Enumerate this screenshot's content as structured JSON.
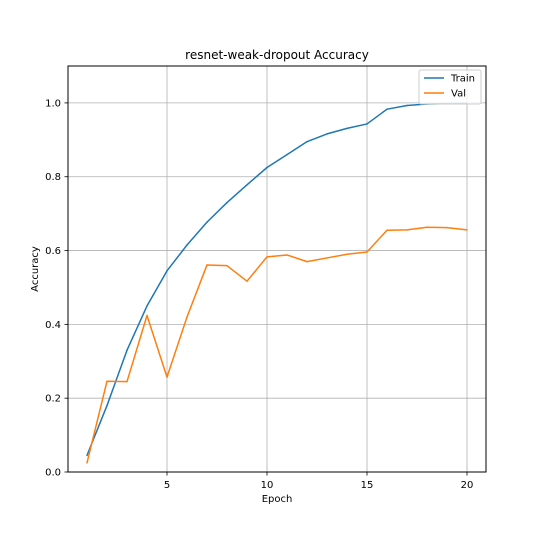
{
  "chart_data": {
    "type": "line",
    "title": "resnet-weak-dropout Accuracy",
    "xlabel": "Epoch",
    "ylabel": "Accuracy",
    "xlim": [
      0.05,
      20.95
    ],
    "ylim": [
      0.0,
      1.1
    ],
    "xticks": [
      5,
      10,
      15,
      20
    ],
    "xtick_labels": [
      "5",
      "10",
      "15",
      "20"
    ],
    "yticks": [
      0.0,
      0.2,
      0.4,
      0.6,
      0.8,
      1.0
    ],
    "ytick_labels": [
      "0.0",
      "0.2",
      "0.4",
      "0.6",
      "0.8",
      "1.0"
    ],
    "grid": true,
    "legend_position": "top-right",
    "x": [
      1,
      2,
      3,
      4,
      5,
      6,
      7,
      8,
      9,
      10,
      11,
      12,
      13,
      14,
      15,
      16,
      17,
      18,
      19,
      20
    ],
    "series": [
      {
        "name": "Train",
        "color": "#1f77b4",
        "values": [
          0.045,
          0.18,
          0.33,
          0.45,
          0.545,
          0.615,
          0.677,
          0.73,
          0.778,
          0.825,
          0.86,
          0.895,
          0.916,
          0.931,
          0.943,
          0.983,
          0.993,
          0.997,
          0.998,
          0.999
        ]
      },
      {
        "name": "Val",
        "color": "#ff7f0e",
        "values": [
          0.025,
          0.246,
          0.245,
          0.424,
          0.257,
          0.42,
          0.561,
          0.559,
          0.517,
          0.583,
          0.588,
          0.57,
          0.58,
          0.59,
          0.596,
          0.655,
          0.656,
          0.663,
          0.662,
          0.656
        ]
      }
    ]
  }
}
